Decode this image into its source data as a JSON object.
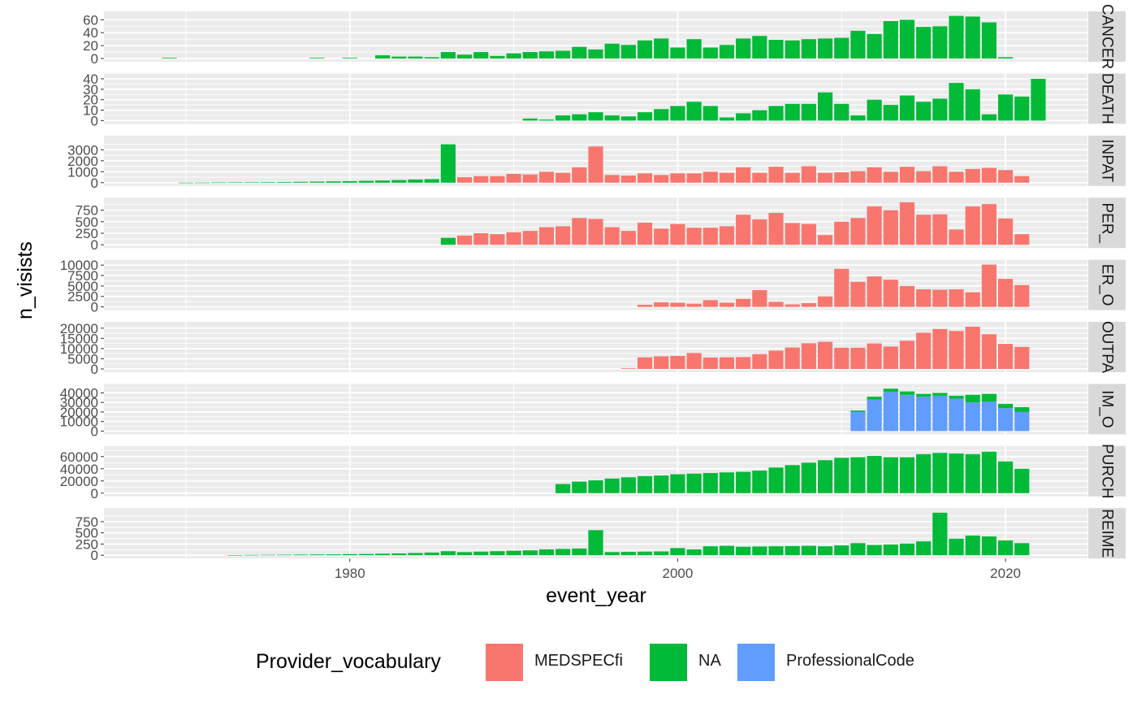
{
  "colors": {
    "MEDSPECfi": "#F8766D",
    "NA": "#00BA38",
    "ProfessionalCode": "#619CFF"
  },
  "legend": {
    "title": "Provider_vocabulary",
    "items": [
      {
        "key": "MEDSPECfi",
        "label": "MEDSPECfi"
      },
      {
        "key": "NA",
        "label": "NA"
      },
      {
        "key": "ProfessionalCode",
        "label": "ProfessionalCode"
      }
    ]
  },
  "chart_data": {
    "type": "bar",
    "stacked": true,
    "facet": "vertical, free y scales, shared x",
    "xlabel": "event_year",
    "ylabel": "n_visists",
    "xlim": [
      1965,
      2025
    ],
    "x_ticks": [
      1980,
      2000,
      2020
    ],
    "grid": true,
    "legend_position": "bottom",
    "panels": [
      {
        "strip": "CANCER",
        "ylim": [
          0,
          68
        ],
        "y_ticks": [
          0,
          20,
          40,
          60
        ],
        "series": [
          {
            "name": "NA",
            "x": [
              1969,
              1978,
              1980,
              1982,
              1983,
              1984,
              1985,
              1986,
              1987,
              1988,
              1989,
              1990,
              1991,
              1992,
              1993,
              1994,
              1995,
              1996,
              1997,
              1998,
              1999,
              2000,
              2001,
              2002,
              2003,
              2004,
              2005,
              2006,
              2007,
              2008,
              2009,
              2010,
              2011,
              2012,
              2013,
              2014,
              2015,
              2016,
              2017,
              2018,
              2019,
              2020
            ],
            "values": [
              1,
              1,
              1,
              5,
              3,
              3,
              2,
              10,
              6,
              10,
              4,
              8,
              10,
              11,
              12,
              18,
              14,
              23,
              21,
              28,
              31,
              17,
              30,
              17,
              21,
              31,
              35,
              29,
              28,
              30,
              31,
              32,
              43,
              38,
              58,
              60,
              49,
              50,
              66,
              65,
              56,
              2
            ]
          }
        ]
      },
      {
        "strip": "DEATH",
        "ylim": [
          0,
          42
        ],
        "y_ticks": [
          0,
          10,
          20,
          30,
          40
        ],
        "series": [
          {
            "name": "NA",
            "x": [
              1991,
              1992,
              1993,
              1994,
              1995,
              1996,
              1997,
              1998,
              1999,
              2000,
              2001,
              2002,
              2003,
              2004,
              2005,
              2006,
              2007,
              2008,
              2009,
              2010,
              2011,
              2012,
              2013,
              2014,
              2015,
              2016,
              2017,
              2018,
              2019,
              2020,
              2021,
              2022
            ],
            "values": [
              2,
              1,
              5,
              6,
              8,
              5,
              4,
              8,
              11,
              14,
              18,
              14,
              3,
              7,
              10,
              14,
              16,
              16,
              27,
              16,
              5,
              20,
              15,
              24,
              18,
              21,
              36,
              30,
              6,
              25,
              23,
              40
            ]
          }
        ]
      },
      {
        "strip": "INPAT",
        "ylim": [
          0,
          4000
        ],
        "y_ticks": [
          0,
          1000,
          2000,
          3000
        ],
        "series": [
          {
            "name": "NA",
            "x": [
              1970,
              1971,
              1972,
              1973,
              1974,
              1975,
              1976,
              1977,
              1978,
              1979,
              1980,
              1981,
              1982,
              1983,
              1984,
              1985,
              1986
            ],
            "values": [
              5,
              10,
              20,
              30,
              40,
              50,
              60,
              80,
              100,
              120,
              140,
              170,
              200,
              240,
              290,
              320,
              3500
            ]
          },
          {
            "name": "MEDSPECfi",
            "x": [
              1987,
              1988,
              1989,
              1990,
              1991,
              1992,
              1993,
              1994,
              1995,
              1996,
              1997,
              1998,
              1999,
              2000,
              2001,
              2002,
              2003,
              2004,
              2005,
              2006,
              2007,
              2008,
              2009,
              2010,
              2011,
              2012,
              2013,
              2014,
              2015,
              2016,
              2017,
              2018,
              2019,
              2020,
              2021
            ],
            "values": [
              500,
              600,
              600,
              800,
              750,
              1000,
              900,
              1400,
              3300,
              700,
              650,
              850,
              700,
              850,
              850,
              1000,
              900,
              1400,
              900,
              1450,
              900,
              1500,
              900,
              950,
              1050,
              1400,
              1000,
              1450,
              1050,
              1500,
              1000,
              1250,
              1350,
              1150,
              600
            ]
          }
        ]
      },
      {
        "strip": "PER_",
        "ylim": [
          0,
          950
        ],
        "y_ticks": [
          0,
          250,
          500,
          750
        ],
        "series": [
          {
            "name": "NA",
            "x": [
              1986
            ],
            "values": [
              150
            ]
          },
          {
            "name": "MEDSPECfi",
            "x": [
              1987,
              1988,
              1989,
              1990,
              1991,
              1992,
              1993,
              1994,
              1995,
              1996,
              1997,
              1998,
              1999,
              2000,
              2001,
              2002,
              2003,
              2004,
              2005,
              2006,
              2007,
              2008,
              2009,
              2010,
              2011,
              2012,
              2013,
              2014,
              2015,
              2016,
              2017,
              2018,
              2019,
              2020,
              2021
            ],
            "values": [
              200,
              250,
              230,
              270,
              300,
              380,
              400,
              580,
              560,
              380,
              300,
              480,
              350,
              450,
              370,
              370,
              400,
              650,
              550,
              690,
              470,
              450,
              210,
              500,
              580,
              830,
              750,
              920,
              650,
              660,
              330,
              830,
              880,
              570,
              230
            ]
          }
        ]
      },
      {
        "strip": "ER_O",
        "ylim": [
          0,
          10500
        ],
        "y_ticks": [
          0,
          2500,
          5000,
          7500,
          10000
        ],
        "series": [
          {
            "name": "MEDSPECfi",
            "x": [
              1998,
              1999,
              2000,
              2001,
              2002,
              2003,
              2004,
              2005,
              2006,
              2007,
              2008,
              2009,
              2010,
              2011,
              2012,
              2013,
              2014,
              2015,
              2016,
              2017,
              2018,
              2019,
              2020,
              2021
            ],
            "values": [
              500,
              1100,
              1000,
              750,
              1600,
              1000,
              1900,
              4000,
              1200,
              600,
              900,
              2500,
              9100,
              6000,
              7300,
              6500,
              5000,
              4200,
              4100,
              4200,
              3500,
              10100,
              6700,
              5200
            ]
          }
        ]
      },
      {
        "strip": "OUTPA",
        "ylim": [
          0,
          21500
        ],
        "y_ticks": [
          0,
          5000,
          10000,
          15000,
          20000
        ],
        "series": [
          {
            "name": "MEDSPECfi",
            "x": [
              1997,
              1998,
              1999,
              2000,
              2001,
              2002,
              2003,
              2004,
              2005,
              2006,
              2007,
              2008,
              2009,
              2010,
              2011,
              2012,
              2013,
              2014,
              2015,
              2016,
              2017,
              2018,
              2019,
              2020,
              2021
            ],
            "values": [
              300,
              5700,
              6200,
              6400,
              7800,
              5600,
              5700,
              5800,
              7300,
              9000,
              10500,
              12600,
              13300,
              10400,
              10400,
              12500,
              11000,
              13800,
              17700,
              19600,
              18600,
              20700,
              17000,
              12300,
              10800
            ]
          }
        ]
      },
      {
        "strip": "IM_O",
        "ylim": [
          0,
          46000
        ],
        "y_ticks": [
          0,
          10000,
          20000,
          30000,
          40000
        ],
        "series": [
          {
            "name": "ProfessionalCode",
            "x": [
              2011,
              2012,
              2013,
              2014,
              2015,
              2016,
              2017,
              2018,
              2019,
              2020,
              2021
            ],
            "values": [
              20000,
              33000,
              41000,
              38000,
              36000,
              37000,
              34000,
              30000,
              31000,
              24000,
              20000
            ]
          },
          {
            "name": "NA",
            "x": [
              2011,
              2012,
              2013,
              2014,
              2015,
              2016,
              2017,
              2018,
              2019,
              2020,
              2021
            ],
            "values": [
              1500,
              3000,
              3500,
              3500,
              3000,
              3000,
              3000,
              8000,
              8000,
              4500,
              5000
            ]
          }
        ]
      },
      {
        "strip": "PURCH",
        "ylim": [
          0,
          72000
        ],
        "y_ticks": [
          0,
          20000,
          40000,
          60000
        ],
        "series": [
          {
            "name": "NA",
            "x": [
              1993,
              1994,
              1995,
              1996,
              1997,
              1998,
              1999,
              2000,
              2001,
              2002,
              2003,
              2004,
              2005,
              2006,
              2007,
              2008,
              2009,
              2010,
              2011,
              2012,
              2013,
              2014,
              2015,
              2016,
              2017,
              2018,
              2019,
              2020,
              2021
            ],
            "values": [
              15000,
              19000,
              21000,
              24000,
              26000,
              28000,
              29000,
              31000,
              32000,
              33000,
              34000,
              35000,
              37000,
              42000,
              46000,
              50000,
              54000,
              58000,
              59000,
              61000,
              59000,
              59000,
              64000,
              66000,
              65000,
              64000,
              68000,
              52000,
              40000
            ]
          }
        ]
      },
      {
        "strip": "REIME",
        "ylim": [
          0,
          980
        ],
        "y_ticks": [
          0,
          250,
          500,
          750
        ],
        "series": [
          {
            "name": "NA",
            "x": [
              1973,
              1974,
              1975,
              1976,
              1977,
              1978,
              1979,
              1980,
              1981,
              1982,
              1983,
              1984,
              1985,
              1986,
              1987,
              1988,
              1989,
              1990,
              1991,
              1992,
              1993,
              1994,
              1995,
              1996,
              1997,
              1998,
              1999,
              2000,
              2001,
              2002,
              2003,
              2004,
              2005,
              2006,
              2007,
              2008,
              2009,
              2010,
              2011,
              2012,
              2013,
              2014,
              2015,
              2016,
              2017,
              2018,
              2019,
              2020,
              2021
            ],
            "values": [
              5,
              8,
              10,
              12,
              15,
              18,
              20,
              25,
              28,
              35,
              40,
              50,
              60,
              90,
              70,
              80,
              90,
              100,
              110,
              130,
              140,
              150,
              560,
              70,
              75,
              80,
              85,
              160,
              130,
              200,
              210,
              190,
              195,
              200,
              205,
              210,
              200,
              220,
              270,
              230,
              240,
              260,
              310,
              950,
              370,
              440,
              420,
              330,
              270
            ]
          }
        ]
      }
    ]
  }
}
